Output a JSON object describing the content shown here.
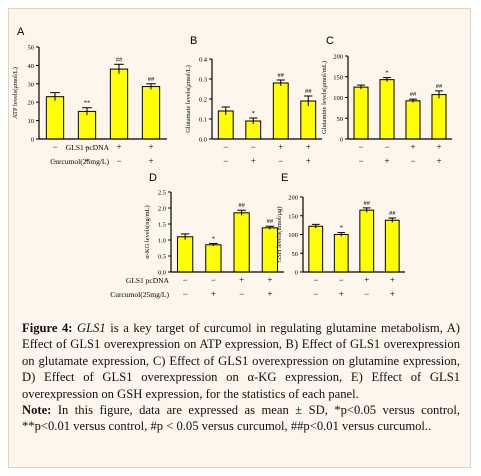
{
  "chart_data": [
    {
      "type": "bar",
      "panel": "A",
      "ylabel": "ATP levels(μmol/L)",
      "ylim": [
        0,
        50
      ],
      "yticks": [
        "0",
        "10",
        "20",
        "30",
        "40",
        "50"
      ],
      "values": [
        23,
        15,
        38,
        28.5
      ],
      "errors": [
        2.2,
        2.0,
        2.6,
        1.5
      ],
      "annotations": [
        "",
        "**",
        "##",
        "##"
      ]
    },
    {
      "type": "bar",
      "panel": "B",
      "ylabel": "Glutamate levels(μmol/L)",
      "ylim": [
        0,
        0.4
      ],
      "yticks": [
        "0.0",
        "0.1",
        "0.2",
        "0.3",
        "0.4"
      ],
      "values": [
        0.14,
        0.09,
        0.28,
        0.19
      ],
      "errors": [
        0.02,
        0.015,
        0.015,
        0.025
      ],
      "annotations": [
        "",
        "*",
        "##",
        "##"
      ]
    },
    {
      "type": "bar",
      "panel": "C",
      "ylabel": "Glutamine levels(μmol/mL)",
      "ylim": [
        0,
        200
      ],
      "yticks": [
        "0",
        "50",
        "100",
        "150",
        "200"
      ],
      "values": [
        125,
        143,
        92,
        107
      ],
      "errors": [
        5,
        5,
        4,
        9
      ],
      "annotations": [
        "",
        "*",
        "##",
        "##"
      ]
    },
    {
      "type": "bar",
      "panel": "D",
      "ylabel": "α-KG levels(ng/mL)",
      "ylim": [
        0,
        2.5
      ],
      "yticks": [
        "0.0",
        "0.5",
        "1.0",
        "1.5",
        "2.0",
        "2.5"
      ],
      "values": [
        1.1,
        0.85,
        1.85,
        1.38
      ],
      "errors": [
        0.09,
        0.04,
        0.08,
        0.05
      ],
      "annotations": [
        "",
        "*",
        "##",
        "##"
      ]
    },
    {
      "type": "bar",
      "panel": "E",
      "ylabel": "GSH levels(nmol/μg)",
      "ylim": [
        0,
        200
      ],
      "yticks": [
        "0",
        "50",
        "100",
        "150",
        "200"
      ],
      "values": [
        122,
        100,
        165,
        138
      ],
      "errors": [
        5,
        5,
        6,
        6
      ],
      "annotations": [
        "",
        "*",
        "##",
        "##"
      ]
    }
  ],
  "conditions": {
    "row1_label": "GLS1 pcDNA",
    "row2_label": "Curcumol(25mg/L)",
    "row1_signs": [
      "−",
      "−",
      "+",
      "+"
    ],
    "row2_signs": [
      "−",
      "+",
      "−",
      "+"
    ]
  },
  "caption": {
    "fig_label": "Figure 4:",
    "fig_italic": "GLS1",
    "fig_text": " is a key target of curcumol in regulating glutamine metabolism, A) Effect of GLS1 overexpression on ATP expression, B) Effect of GLS1 overexpression on glutamate expression, C) Effect of GLS1 overexpression on glutamine expression, D) Effect of GLS1 overexpression on α-KG expression, E) Effect of GLS1 overexpression on GSH expression, for the statistics of each panel.",
    "note_label": "Note:",
    "note_text": " In this figure, data are expressed as mean ± SD, *p<0.05 versus control, **p<0.01 versus control, #p < 0.05 versus curcumol, ##p<0.01 versus curcumol.."
  },
  "colors": {
    "bar_fill": "#ffff00",
    "axis": "#000000",
    "panel_bg": "#fef5ec"
  }
}
